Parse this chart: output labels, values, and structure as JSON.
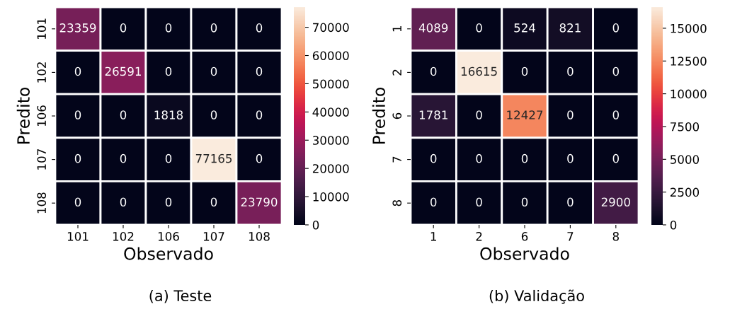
{
  "chart_data": [
    {
      "type": "heatmap",
      "title": "(a) Teste",
      "xlabel": "Observado",
      "ylabel": "Predito",
      "categories": [
        "101",
        "102",
        "106",
        "107",
        "108"
      ],
      "y_categories": [
        "101",
        "102",
        "106",
        "107",
        "108"
      ],
      "cells": [
        [
          23359,
          0,
          0,
          0,
          0
        ],
        [
          0,
          26591,
          0,
          0,
          0
        ],
        [
          0,
          0,
          1818,
          0,
          0
        ],
        [
          0,
          0,
          0,
          77165,
          0
        ],
        [
          0,
          0,
          0,
          0,
          23790
        ]
      ],
      "clim": [
        0,
        77165
      ],
      "cticks": [
        0,
        10000,
        20000,
        30000,
        40000,
        50000,
        60000,
        70000
      ],
      "data_labels": true
    },
    {
      "type": "heatmap",
      "title": "(b) Validação",
      "xlabel": "Observado",
      "ylabel": "Predito",
      "categories": [
        "1",
        "2",
        "6",
        "7",
        "8"
      ],
      "y_categories": [
        "1",
        "2",
        "6",
        "7",
        "8"
      ],
      "cells": [
        [
          4089,
          0,
          524,
          821,
          0
        ],
        [
          0,
          16615,
          0,
          0,
          0
        ],
        [
          1781,
          0,
          12427,
          0,
          0
        ],
        [
          0,
          0,
          0,
          0,
          0
        ],
        [
          0,
          0,
          0,
          0,
          2900
        ]
      ],
      "clim": [
        0,
        16615
      ],
      "cticks": [
        0,
        2500,
        5000,
        7500,
        10000,
        12500,
        15000
      ],
      "data_labels": true
    }
  ]
}
